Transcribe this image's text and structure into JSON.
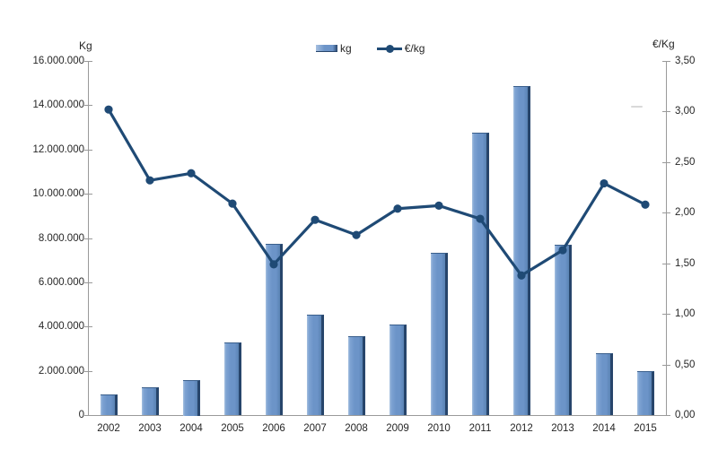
{
  "chart_data": {
    "type": "combo",
    "title": "",
    "categories": [
      "2002",
      "2003",
      "2004",
      "2005",
      "2006",
      "2007",
      "2008",
      "2009",
      "2010",
      "2011",
      "2012",
      "2013",
      "2014",
      "2015"
    ],
    "series": [
      {
        "name": "kg",
        "type": "bar",
        "axis": "left",
        "values": [
          950000,
          1250000,
          1600000,
          3300000,
          7750000,
          4550000,
          3550000,
          4100000,
          7350000,
          12750000,
          14850000,
          7700000,
          2800000,
          2000000
        ]
      },
      {
        "name": "€/kg",
        "type": "line",
        "axis": "right",
        "values": [
          3.02,
          2.32,
          2.39,
          2.09,
          1.49,
          1.93,
          1.78,
          2.04,
          2.07,
          1.94,
          1.38,
          1.63,
          2.29,
          2.08
        ]
      }
    ],
    "left_axis": {
      "title": "Kg",
      "min": 0,
      "max": 16000000,
      "tick_step": 2000000,
      "tick_labels": [
        "0",
        "2.000.000",
        "4.000.000",
        "6.000.000",
        "8.000.000",
        "10.000.000",
        "12.000.000",
        "14.000.000",
        "16.000.000"
      ]
    },
    "right_axis": {
      "title": "€/Kg",
      "min": 0,
      "max": 3.5,
      "tick_step": 0.5,
      "tick_labels": [
        "0,00",
        "0,50",
        "1,00",
        "1,50",
        "2,00",
        "2,50",
        "3,00",
        "3,50"
      ]
    },
    "legend": {
      "position": "top",
      "entries": [
        "kg",
        "€/kg"
      ]
    },
    "grid": "off",
    "colors": {
      "bar_fill": "#6c94c8",
      "bar_highlight": "#a6c0e0",
      "bar_shadow": "#27456b",
      "line": "#1f4a75",
      "axis_line": "#9a9a9a",
      "label_text": "#262626"
    }
  }
}
